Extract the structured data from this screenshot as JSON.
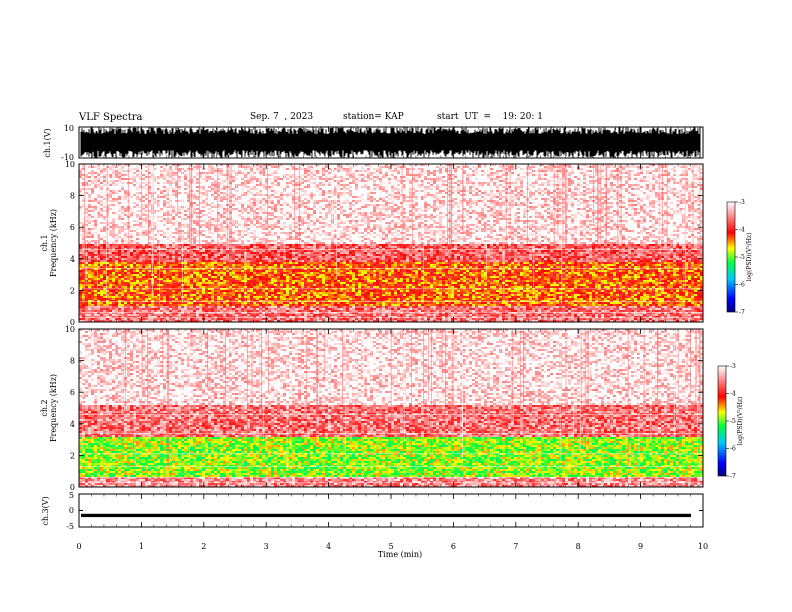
{
  "header": {
    "title": "VLF Spectra",
    "date": "Sep. 7  , 2023",
    "station": "station= KAP",
    "start": "start  UT  =    19: 20: 1"
  },
  "chart_data": [
    {
      "type": "line",
      "title": "",
      "ylabel": "ch.1(V)",
      "ylim": [
        -10,
        10
      ],
      "yticks": [
        "10",
        "-10"
      ],
      "xlim": [
        0,
        10
      ],
      "description_series": "dense waveform mostly between -10 and 10 V"
    },
    {
      "type": "heatmap",
      "ylabel_line1": "ch.1",
      "ylabel_line2": "Frequency  (kHz)",
      "ylim": [
        0,
        10
      ],
      "yticks": [
        "0",
        "2",
        "4",
        "6",
        "8",
        "10"
      ],
      "xlim": [
        0,
        10
      ],
      "bands": [
        {
          "from": 0.0,
          "to": 1.0,
          "level": -3.6
        },
        {
          "from": 1.0,
          "to": 3.8,
          "level": -4.3
        },
        {
          "from": 3.8,
          "to": 5.0,
          "level": -3.7
        },
        {
          "from": 5.0,
          "to": 10.0,
          "level": -3.1
        }
      ],
      "colorbar": {
        "label": "log(PSD)(V²/Hz)",
        "min": -7,
        "max": -3,
        "ticks": [
          "-3",
          "-4",
          "-5",
          "-6",
          "-7"
        ]
      }
    },
    {
      "type": "heatmap",
      "ylabel_line1": "ch.2",
      "ylabel_line2": "Frequency  (kHz)",
      "ylim": [
        0,
        10
      ],
      "yticks": [
        "0",
        "2",
        "4",
        "6",
        "8",
        "10"
      ],
      "xlim": [
        0,
        10
      ],
      "bands": [
        {
          "from": 0.0,
          "to": 0.6,
          "level": -3.5
        },
        {
          "from": 0.6,
          "to": 3.2,
          "level": -4.9
        },
        {
          "from": 3.2,
          "to": 5.2,
          "level": -3.6
        },
        {
          "from": 5.2,
          "to": 10.0,
          "level": -3.1
        }
      ],
      "colorbar": {
        "label": "log(PSD)(V²/Hz)",
        "min": -7,
        "max": -3,
        "ticks": [
          "-3",
          "-4",
          "-5",
          "-6",
          "-7"
        ]
      }
    },
    {
      "type": "line",
      "ylabel": "ch.3(V)",
      "ylim": [
        -5,
        5
      ],
      "yticks": [
        "5",
        "0",
        "-5"
      ],
      "xlim": [
        0,
        10
      ],
      "xlabel": "Time  (min)",
      "xticks": [
        "0",
        "1",
        "2",
        "3",
        "4",
        "5",
        "6",
        "7",
        "8",
        "9",
        "10"
      ],
      "series_band": [
        -2,
        -1
      ]
    }
  ]
}
